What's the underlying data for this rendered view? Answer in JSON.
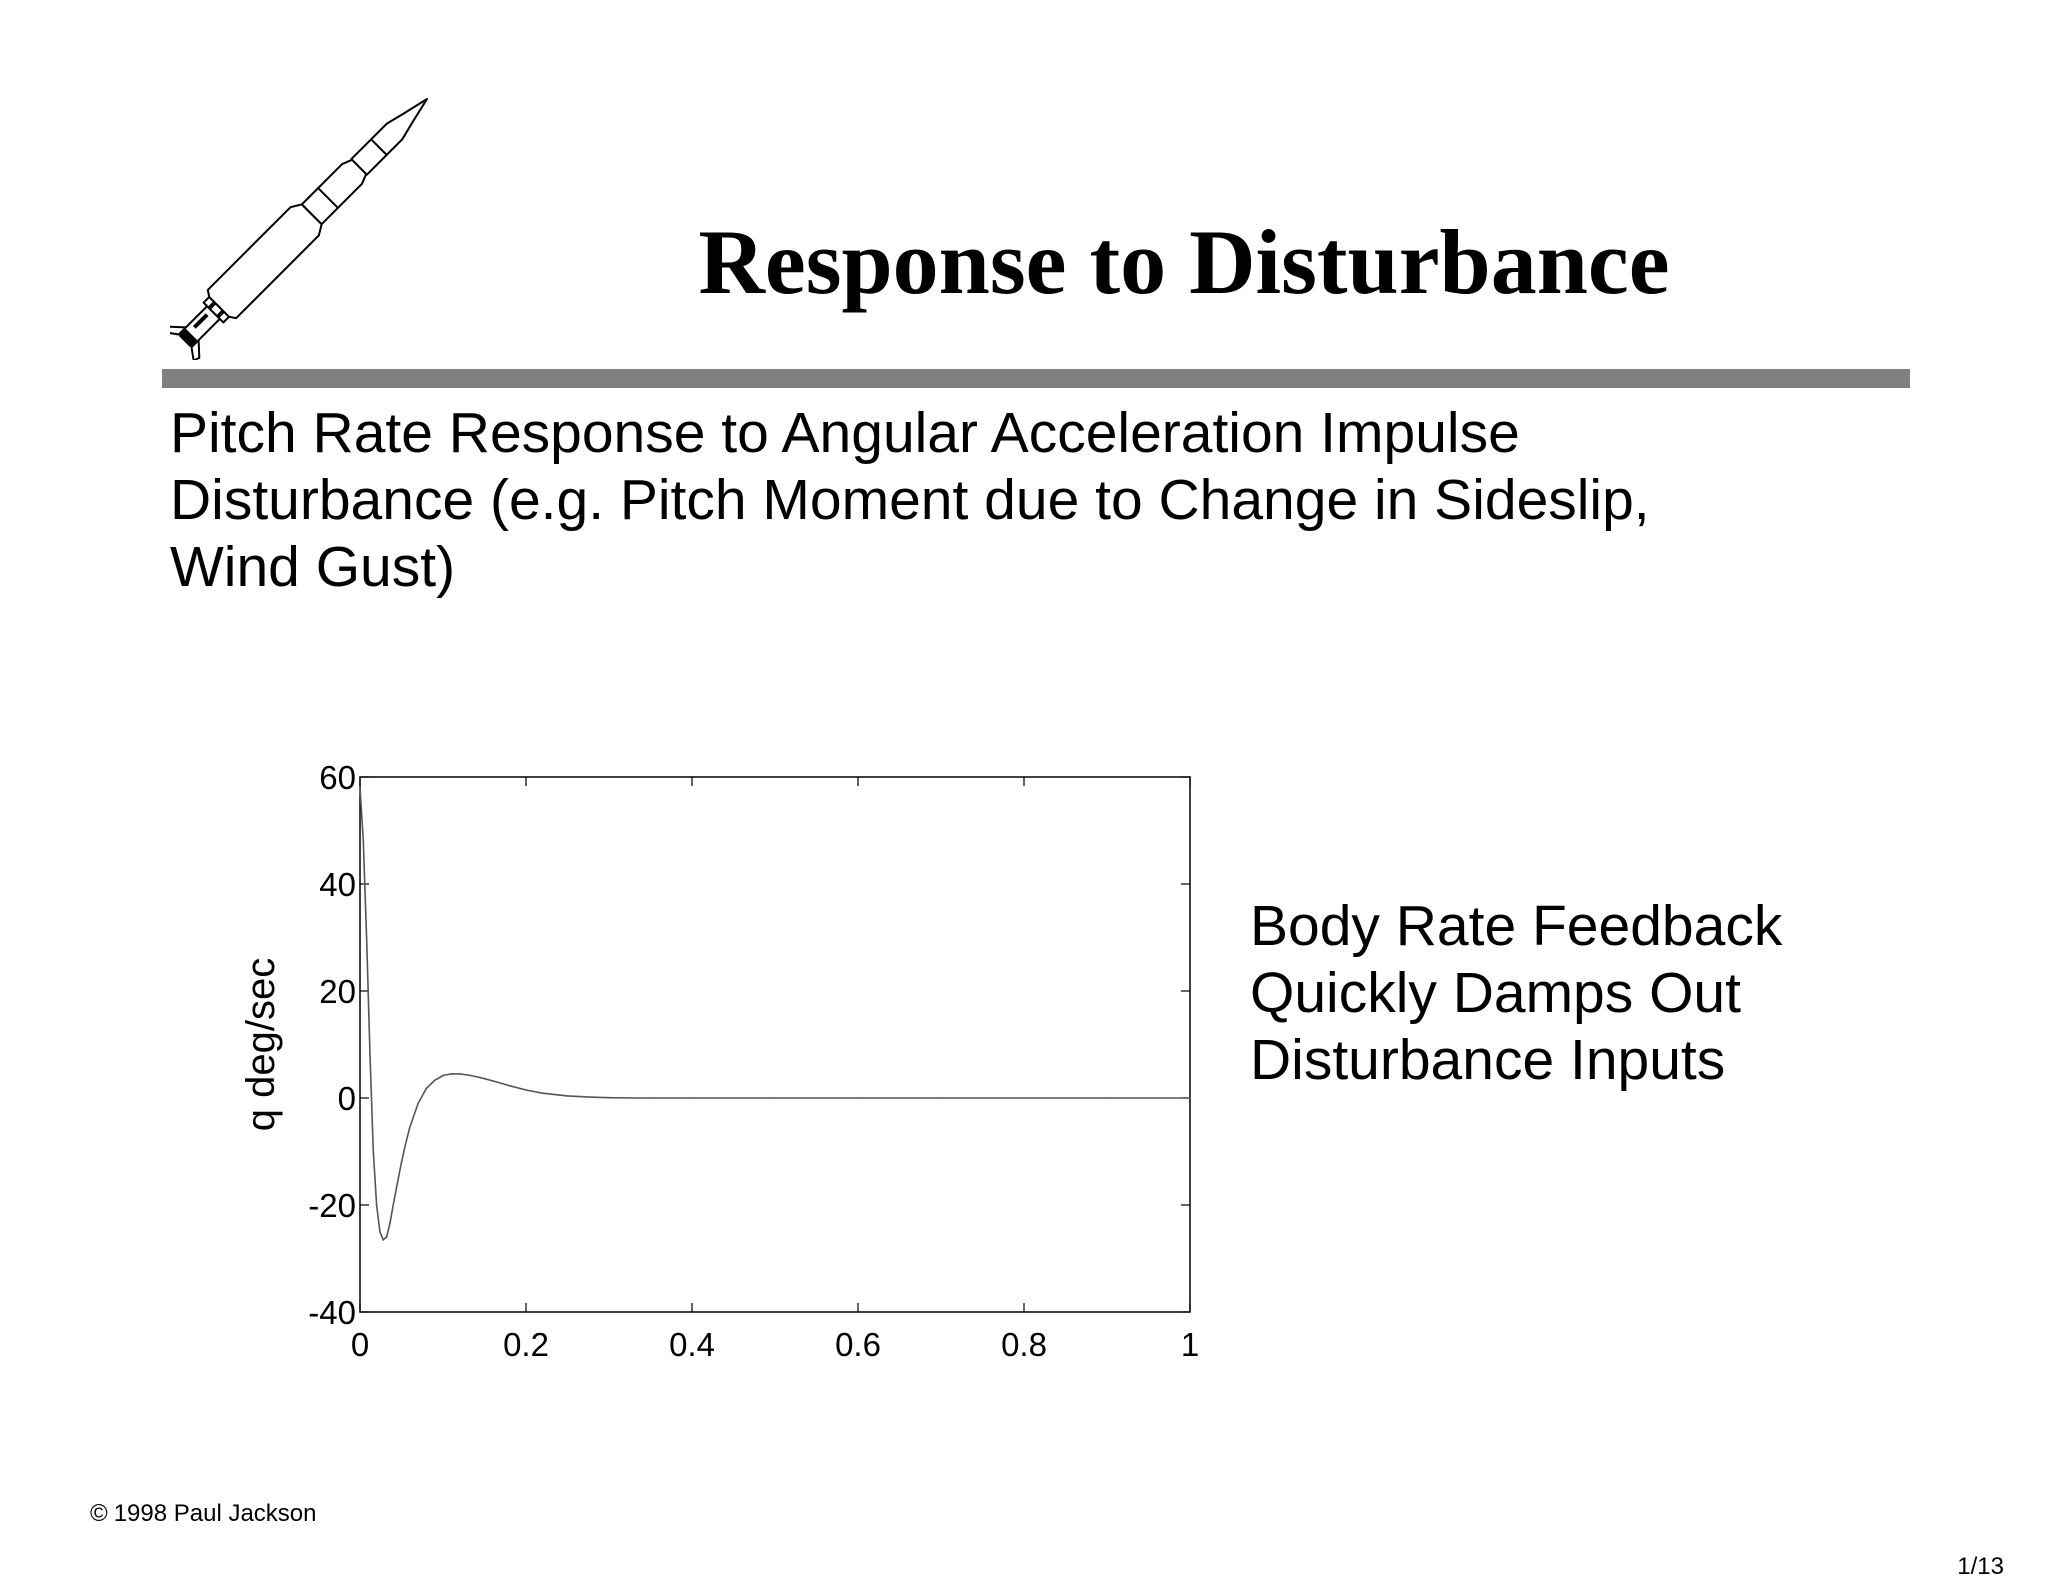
{
  "slide": {
    "title": "Response to Disturbance",
    "subtitle_lines": [
      "Pitch Rate Response to Angular Acceleration Impulse",
      "Disturbance (e.g. Pitch Moment due to Change in Sideslip,",
      "Wind Gust)"
    ],
    "note_lines": [
      "Body Rate Feedback",
      "Quickly Damps Out",
      "Disturbance Inputs"
    ],
    "copyright_symbol": "©",
    "copyright": "1998 Paul Jackson",
    "page_number": "1/13",
    "logo_icon": "rocket-icon",
    "rule_color": "#808080"
  },
  "chart_data": {
    "type": "line",
    "title": "",
    "xlabel": "",
    "ylabel": "q deg/sec",
    "xlim": [
      0,
      1
    ],
    "ylim": [
      -40,
      60
    ],
    "xticks": [
      0,
      0.2,
      0.4,
      0.6,
      0.8,
      1
    ],
    "xtick_labels": [
      "0",
      "0.2",
      "0.4",
      "0.6",
      "0.8",
      "1"
    ],
    "yticks": [
      -40,
      -20,
      0,
      20,
      40,
      60
    ],
    "ytick_labels": [
      "-40",
      "-20",
      "0",
      "20",
      "40",
      "60"
    ],
    "grid": false,
    "line_color": "#555555",
    "series": [
      {
        "x": [
          0,
          0.004,
          0.008,
          0.012,
          0.016,
          0.02,
          0.024,
          0.028,
          0.032,
          0.036,
          0.04,
          0.045,
          0.05,
          0.055,
          0.06,
          0.07,
          0.08,
          0.09,
          0.1,
          0.11,
          0.12,
          0.13,
          0.14,
          0.15,
          0.16,
          0.18,
          0.2,
          0.22,
          0.25,
          0.28,
          0.3,
          0.33,
          0.35,
          0.4,
          0.5,
          0.6,
          0.7,
          0.8,
          0.9,
          1.0
        ],
        "y": [
          58,
          48,
          30,
          8,
          -10,
          -20,
          -25,
          -26.5,
          -26,
          -23.5,
          -20,
          -16,
          -12,
          -8.5,
          -5.5,
          -1,
          1.8,
          3.3,
          4.2,
          4.5,
          4.5,
          4.3,
          4,
          3.6,
          3.2,
          2.3,
          1.5,
          0.9,
          0.4,
          0.15,
          0.05,
          0,
          0,
          0,
          0,
          0,
          0,
          0,
          0,
          0
        ]
      }
    ]
  }
}
